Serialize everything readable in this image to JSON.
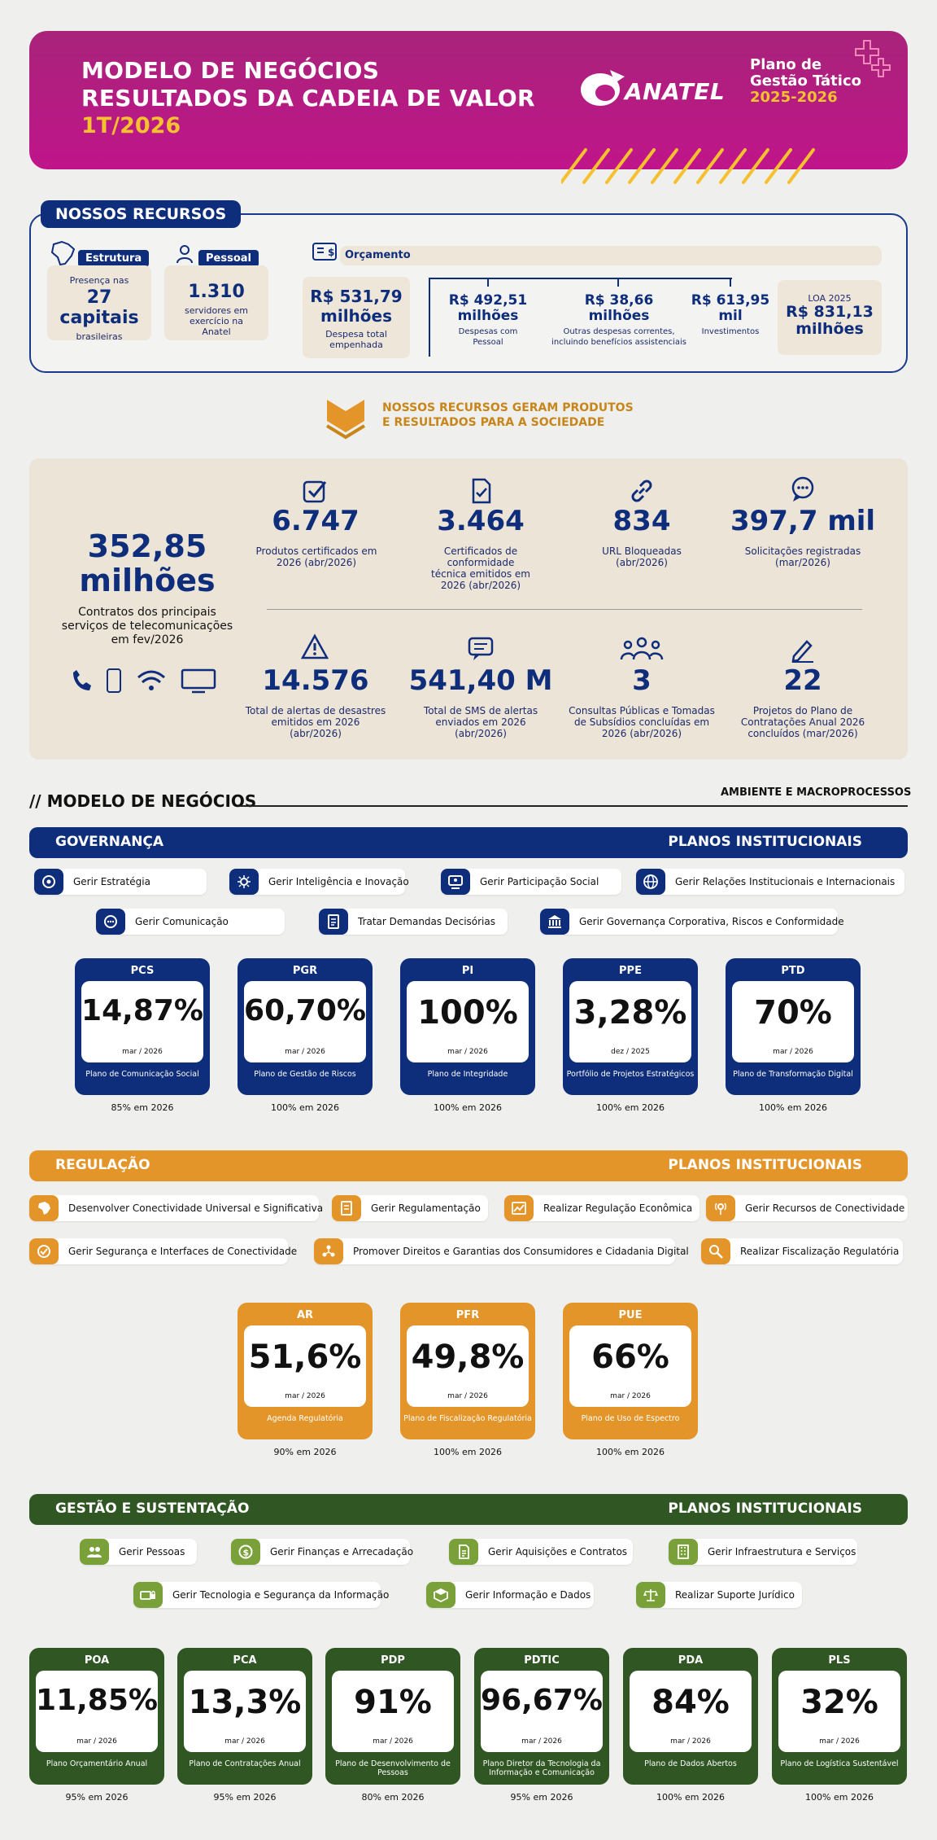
{
  "header": {
    "title_line1": "MODELO DE NEGÓCIOS",
    "title_line2": "RESULTADOS DA CADEIA DE VALOR",
    "period": "1T/2026",
    "logo_text": "ANATEL",
    "plan_line1": "Plano de",
    "plan_line2": "Gestão Tático",
    "plan_years": "2025-2026"
  },
  "recursos": {
    "tag": "NOSSOS RECURSOS",
    "estrutura": {
      "label": "Estrutura",
      "top": "Presença nas",
      "value": "27 capitais",
      "bottom": "brasileiras"
    },
    "pessoal": {
      "label": "Pessoal",
      "value": "1.310",
      "bottom": "servidores em exercício na Anatel"
    },
    "orcamento": {
      "label": "Orçamento",
      "total": {
        "value1": "R$ 531,79",
        "value2": "milhões",
        "desc": "Despesa total empenhada"
      },
      "items": [
        {
          "value1": "R$ 492,51",
          "value2": "milhões",
          "desc": "Despesas com Pessoal"
        },
        {
          "value1": "R$ 38,66",
          "value2": "milhões",
          "desc": "Outras despesas correntes, incluindo benefícios assistenciais"
        },
        {
          "value1": "R$ 613,95",
          "value2": "mil",
          "desc": "Investimentos"
        }
      ],
      "loa": {
        "label": "LOA 2025",
        "value1": "R$ 831,13",
        "value2": "milhões"
      }
    }
  },
  "bridge": {
    "line1": "NOSSOS RECURSOS GERAM PRODUTOS",
    "line2": "E RESULTADOS PARA A SOCIEDADE"
  },
  "produtos": {
    "main": {
      "value1": "352,85",
      "value2": "milhões",
      "desc": "Contratos dos principais serviços de telecomunicações em fev/2026"
    },
    "row1": [
      {
        "icon": "checkbox-icon",
        "value": "6.747",
        "desc": "Produtos certificados em 2026 (abr/2026)"
      },
      {
        "icon": "certificate-icon",
        "value": "3.464",
        "desc": "Certificados de conformidade técnica emitidos em 2026 (abr/2026)"
      },
      {
        "icon": "link-icon",
        "value": "834",
        "desc": "URL Bloqueadas (abr/2026)"
      },
      {
        "icon": "chat-icon",
        "value": "397,7 mil",
        "desc": "Solicitações registradas (mar/2026)"
      }
    ],
    "row2": [
      {
        "icon": "warning-icon",
        "value": "14.576",
        "desc": "Total de alertas de desastres emitidos em 2026 (abr/2026)"
      },
      {
        "icon": "message-icon",
        "value": "541,40 M",
        "desc": "Total de SMS de alertas enviados em 2026 (abr/2026)"
      },
      {
        "icon": "people-icon",
        "value": "3",
        "desc": "Consultas Públicas e Tomadas de Subsídios concluídas em 2026 (abr/2026)"
      },
      {
        "icon": "pencil-icon",
        "value": "22",
        "desc": "Projetos do Plano de Contratações Anual 2026 concluídos (mar/2026)"
      }
    ]
  },
  "modelo": {
    "title": "// MODELO DE NEGÓCIOS",
    "ambiente": "AMBIENTE E MACROPROCESSOS"
  },
  "governanca": {
    "title": "GOVERNANÇA",
    "planos": "PLANOS INSTITUCIONAIS",
    "processes": [
      "Gerir Estratégia",
      "Gerir Inteligência e Inovação",
      "Gerir Participação Social",
      "Gerir Relações Institucionais e Internacionais",
      "Gerir Comunicação",
      "Tratar Demandas Decisórias",
      "Gerir Governança Corporativa, Riscos e Conformidade"
    ],
    "kpis": [
      {
        "code": "PCS",
        "value": "14,87%",
        "date": "mar / 2026",
        "name": "Plano de Comunicação Social",
        "goal": "85% em 2026"
      },
      {
        "code": "PGR",
        "value": "60,70%",
        "date": "mar / 2026",
        "name": "Plano de Gestão de Riscos",
        "goal": "100% em 2026"
      },
      {
        "code": "PI",
        "value": "100%",
        "date": "mar / 2026",
        "name": "Plano de Integridade",
        "goal": "100% em 2026"
      },
      {
        "code": "PPE",
        "value": "3,28%",
        "date": "dez / 2025",
        "name": "Portfólio de Projetos Estratégicos",
        "goal": "100% em 2026"
      },
      {
        "code": "PTD",
        "value": "70%",
        "date": "mar / 2026",
        "name": "Plano de Transformação Digital",
        "goal": "100% em 2026"
      }
    ]
  },
  "regulacao": {
    "title": "REGULAÇÃO",
    "planos": "PLANOS INSTITUCIONAIS",
    "processes": [
      "Desenvolver Conectividade Universal e Significativa",
      "Gerir Regulamentação",
      "Realizar Regulação Econômica",
      "Gerir Recursos de Conectividade",
      "Gerir Segurança e Interfaces de Conectividade",
      "Promover Direitos e Garantias dos Consumidores e Cidadania Digital",
      "Realizar Fiscalização Regulatória"
    ],
    "kpis": [
      {
        "code": "AR",
        "value": "51,6%",
        "date": "mar / 2026",
        "name": "Agenda Regulatória",
        "goal": "90% em 2026"
      },
      {
        "code": "PFR",
        "value": "49,8%",
        "date": "mar / 2026",
        "name": "Plano de Fiscalização Regulatória",
        "goal": "100% em 2026"
      },
      {
        "code": "PUE",
        "value": "66%",
        "date": "mar / 2026",
        "name": "Plano de Uso de Espectro",
        "goal": "100% em 2026"
      }
    ]
  },
  "gestao": {
    "title": "GESTÃO E SUSTENTAÇÃO",
    "planos": "PLANOS INSTITUCIONAIS",
    "processes": [
      "Gerir Pessoas",
      "Gerir Finanças e Arrecadação",
      "Gerir Aquisições e Contratos",
      "Gerir Infraestrutura e Serviços",
      "Gerir Tecnologia e Segurança da Informação",
      "Gerir Informação e Dados",
      "Realizar Suporte Jurídico"
    ],
    "kpis": [
      {
        "code": "POA",
        "value": "11,85%",
        "date": "mar / 2026",
        "name": "Plano Orçamentário Anual",
        "goal": "95% em 2026"
      },
      {
        "code": "PCA",
        "value": "13,3%",
        "date": "mar / 2026",
        "name": "Plano de Contratações Anual",
        "goal": "95% em 2026"
      },
      {
        "code": "PDP",
        "value": "91%",
        "date": "mar / 2026",
        "name": "Plano de Desenvolvimento de Pessoas",
        "goal": "80% em 2026"
      },
      {
        "code": "PDTIC",
        "value": "96,67%",
        "date": "mar / 2026",
        "name": "Plano Diretor da Tecnologia da Informação e Comunicação",
        "goal": "95% em 2026"
      },
      {
        "code": "PDA",
        "value": "84%",
        "date": "mar / 2026",
        "name": "Plano de Dados Abertos",
        "goal": "100% em 2026"
      },
      {
        "code": "PLS",
        "value": "32%",
        "date": "mar / 2026",
        "name": "Plano de Logística Sustentável",
        "goal": "100% em 2026"
      }
    ]
  },
  "colors": {
    "magenta": "#b81e85",
    "navy": "#0e2d7a",
    "orange": "#e3952a",
    "green": "#2f5623",
    "gold": "#f5c12e"
  }
}
